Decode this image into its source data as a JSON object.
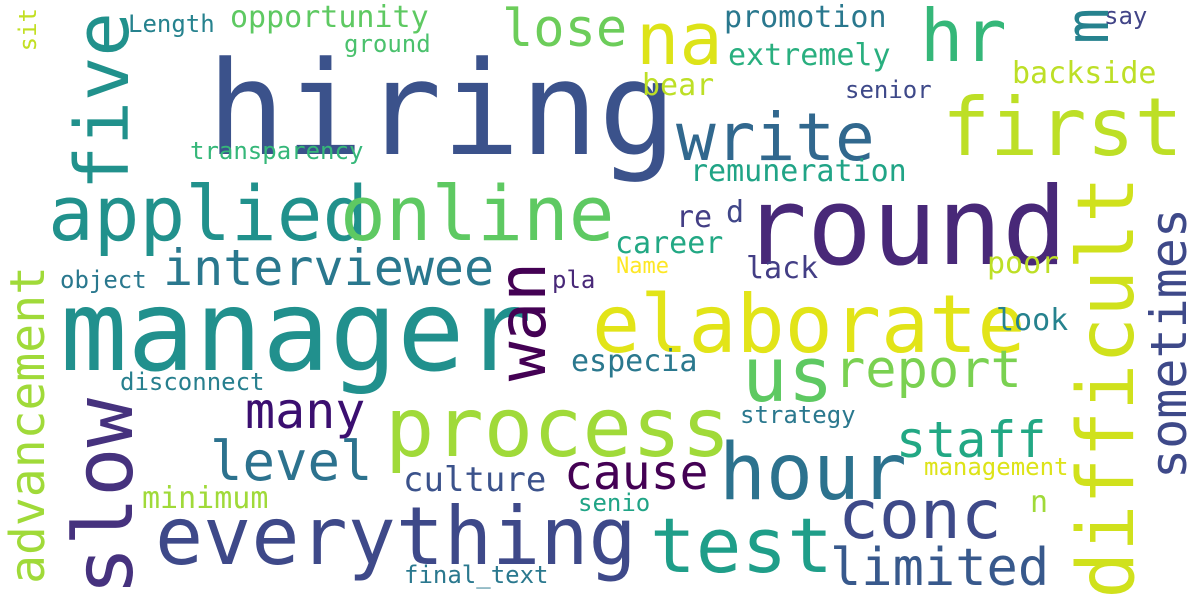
{
  "words": [
    {
      "text": "hiring",
      "color": "#3b528b"
    },
    {
      "text": "manager",
      "color": "#21908d"
    },
    {
      "text": "round",
      "color": "#482878"
    },
    {
      "text": "applied",
      "color": "#21918c"
    },
    {
      "text": "online",
      "color": "#5ec962"
    },
    {
      "text": "elaborate",
      "color": "#e2e418"
    },
    {
      "text": "process",
      "color": "#a0da39"
    },
    {
      "text": "everything",
      "color": "#3e4989"
    },
    {
      "text": "first",
      "color": "#bddf26"
    },
    {
      "text": "write",
      "color": "#31688e"
    },
    {
      "text": "hour",
      "color": "#2c728e"
    },
    {
      "text": "test",
      "color": "#1f9e89"
    },
    {
      "text": "conc",
      "color": "#3e4a89"
    },
    {
      "text": "na",
      "color": "#dde318"
    },
    {
      "text": "hr",
      "color": "#35b779"
    },
    {
      "text": "m",
      "color": "#26828e"
    },
    {
      "text": "us",
      "color": "#5ec962"
    },
    {
      "text": "report",
      "color": "#7ad151"
    },
    {
      "text": "lose",
      "color": "#6ccd5a"
    },
    {
      "text": "interviewee",
      "color": "#2a788e"
    },
    {
      "text": "many",
      "color": "#3b0f70"
    },
    {
      "text": "level",
      "color": "#2c728e"
    },
    {
      "text": "cause",
      "color": "#440154"
    },
    {
      "text": "staff",
      "color": "#22a884"
    },
    {
      "text": "limited",
      "color": "#38598c"
    },
    {
      "text": "culture",
      "color": "#3b528b"
    },
    {
      "text": "five",
      "color": "#21918c"
    },
    {
      "text": "slow",
      "color": "#46327e"
    },
    {
      "text": "advancement",
      "color": "#a0da39"
    },
    {
      "text": "wan",
      "color": "#440154"
    },
    {
      "text": "difficult",
      "color": "#d0e11c"
    },
    {
      "text": "sometimes",
      "color": "#3e4989"
    },
    {
      "text": "promotion",
      "color": "#2a788e"
    },
    {
      "text": "extremely",
      "color": "#29af7f"
    },
    {
      "text": "opportunity",
      "color": "#5ec962"
    },
    {
      "text": "ground",
      "color": "#4ac16d"
    },
    {
      "text": "Length",
      "color": "#26828e"
    },
    {
      "text": "say",
      "color": "#414487"
    },
    {
      "text": "backside",
      "color": "#bddf26"
    },
    {
      "text": "senior",
      "color": "#3e4989"
    },
    {
      "text": "bear",
      "color": "#bddf26"
    },
    {
      "text": "transparency",
      "color": "#35b779"
    },
    {
      "text": "remuneration",
      "color": "#20a486"
    },
    {
      "text": "re",
      "color": "#433e85"
    },
    {
      "text": "d",
      "color": "#404688"
    },
    {
      "text": "career",
      "color": "#22a884"
    },
    {
      "text": "lack",
      "color": "#433e85"
    },
    {
      "text": "poor",
      "color": "#bddf26"
    },
    {
      "text": "Name",
      "color": "#fde725"
    },
    {
      "text": "object",
      "color": "#2a788e"
    },
    {
      "text": "pla",
      "color": "#482878"
    },
    {
      "text": "look",
      "color": "#26828e"
    },
    {
      "text": "especia",
      "color": "#2a788e"
    },
    {
      "text": "disconnect",
      "color": "#277f8e"
    },
    {
      "text": "strategy",
      "color": "#2a788e"
    },
    {
      "text": "management",
      "color": "#dde318"
    },
    {
      "text": "minimum",
      "color": "#a0da39"
    },
    {
      "text": "senio",
      "color": "#20a486"
    },
    {
      "text": "n",
      "color": "#a0da39"
    },
    {
      "text": "final_text",
      "color": "#2a788e"
    },
    {
      "text": "sit",
      "color": "#c2df23"
    }
  ]
}
